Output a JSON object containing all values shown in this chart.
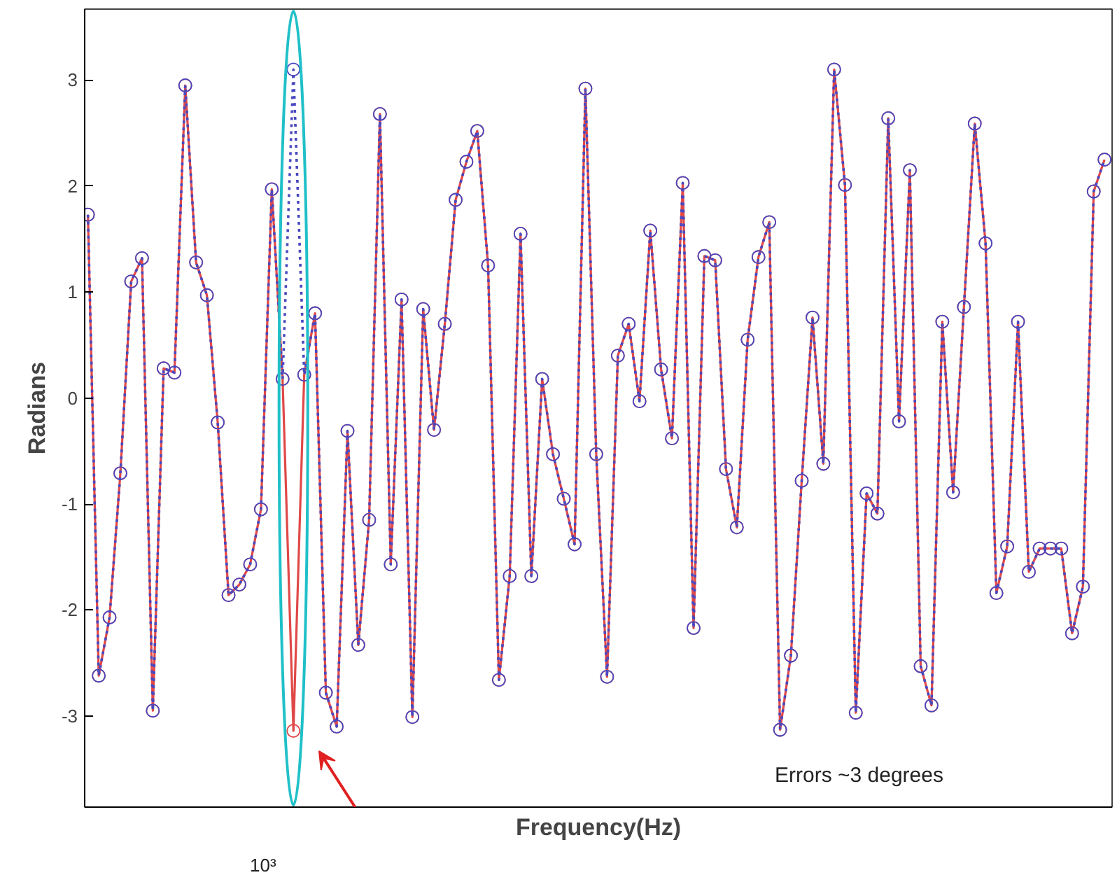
{
  "chart_data": {
    "type": "line",
    "xlabel": "Frequency(Hz)",
    "ylabel": "Radians",
    "categories": [
      null,
      null,
      null,
      null,
      null,
      null,
      null,
      null,
      null,
      null,
      null,
      null,
      null,
      null,
      null,
      null,
      null,
      null,
      null,
      null,
      null,
      null,
      null,
      null,
      null,
      null,
      null,
      null,
      null,
      null,
      null,
      null,
      null,
      null,
      null,
      null,
      null,
      null,
      null,
      null,
      null,
      null,
      null,
      null,
      null,
      null,
      null,
      null,
      null,
      null,
      null,
      null,
      null,
      null,
      null,
      null,
      null,
      null,
      null,
      null,
      null,
      null,
      null,
      null,
      null,
      null,
      null,
      null,
      null,
      null,
      null,
      null,
      null,
      null,
      null,
      null,
      null,
      null,
      null,
      null,
      null,
      null,
      null,
      null,
      null,
      null,
      null,
      null,
      null,
      null,
      null,
      null,
      null,
      null,
      null
    ],
    "series": [
      {
        "color": "#e04848",
        "line_style": "solid",
        "values": [
          1.73,
          -2.62,
          -2.07,
          -0.71,
          1.1,
          1.32,
          -2.95,
          0.28,
          0.24,
          2.95,
          1.28,
          0.97,
          -0.23,
          -1.86,
          -1.76,
          -1.57,
          -1.05,
          1.97,
          0.18,
          -3.14,
          0.22,
          0.8,
          -2.78,
          -3.1,
          -0.31,
          -2.33,
          -1.15,
          2.68,
          -1.57,
          0.93,
          -3.01,
          0.84,
          -0.3,
          0.7,
          1.87,
          2.23,
          2.52,
          1.25,
          -2.66,
          -1.68,
          1.55,
          -1.68,
          0.18,
          -0.53,
          -0.95,
          -1.38,
          2.92,
          -0.53,
          -2.63,
          0.4,
          0.7,
          -0.03,
          1.58,
          0.27,
          -0.38,
          2.03,
          -2.17,
          1.34,
          1.3,
          -0.67,
          -1.22,
          0.55,
          1.33,
          1.66,
          -3.13,
          -2.43,
          -0.78,
          0.76,
          -0.62,
          3.1,
          2.01,
          -2.97,
          -0.9,
          -1.09,
          2.64,
          -0.22,
          2.15,
          -2.53,
          -2.9,
          0.72,
          -0.89,
          0.86,
          2.59,
          1.46,
          -1.84,
          -1.4,
          0.72,
          -1.64,
          -1.42,
          -1.42,
          -1.42,
          -2.22,
          -1.78,
          1.95,
          2.25
        ]
      },
      {
        "color": "#4848c0",
        "line_style": "dotted",
        "values": [
          1.73,
          -2.62,
          -2.07,
          -0.71,
          1.1,
          1.32,
          -2.95,
          0.28,
          0.24,
          2.95,
          1.28,
          0.97,
          -0.23,
          -1.86,
          -1.76,
          -1.57,
          -1.05,
          1.97,
          0.18,
          3.1,
          0.22,
          0.8,
          -2.78,
          -3.1,
          -0.31,
          -2.33,
          -1.15,
          2.68,
          -1.57,
          0.93,
          -3.01,
          0.84,
          -0.3,
          0.7,
          1.87,
          2.23,
          2.52,
          1.25,
          -2.66,
          -1.68,
          1.55,
          -1.68,
          0.18,
          -0.53,
          -0.95,
          -1.38,
          2.92,
          -0.53,
          -2.63,
          0.4,
          0.7,
          -0.03,
          1.58,
          0.27,
          -0.38,
          2.03,
          -2.17,
          1.34,
          1.3,
          -0.67,
          -1.22,
          0.55,
          1.33,
          1.66,
          -3.13,
          -2.43,
          -0.78,
          0.76,
          -0.62,
          3.1,
          2.01,
          -2.97,
          -0.9,
          -1.09,
          2.64,
          -0.22,
          2.15,
          -2.53,
          -2.9,
          0.72,
          -0.89,
          0.86,
          2.59,
          1.46,
          -1.84,
          -1.4,
          0.72,
          -1.64,
          -1.42,
          -1.42,
          -1.42,
          -2.22,
          -1.78,
          1.95,
          2.25
        ]
      }
    ],
    "ylim": [
      -3.86,
      3.67
    ],
    "yticks": [
      -3,
      -2,
      -1,
      0,
      1,
      2,
      3
    ],
    "grid": false,
    "marker": "circle",
    "annotations": [
      "10³",
      "Errors ~3 degrees"
    ]
  }
}
